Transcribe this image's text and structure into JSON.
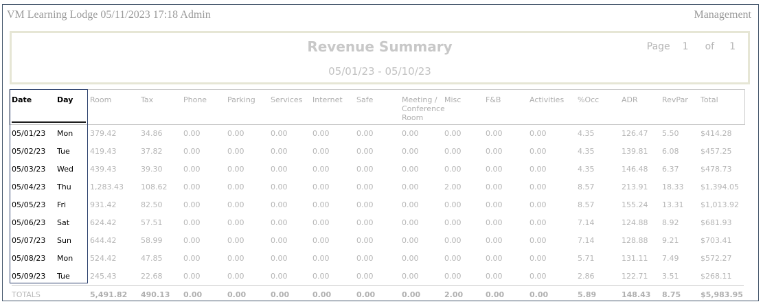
{
  "header": {
    "left": "VM Learning Lodge 05/11/2023 17:18  Admin",
    "right": "Management"
  },
  "report": {
    "title": "Revenue Summary",
    "date_range": "05/01/23 - 05/10/23",
    "page_label": "Page",
    "page_number": "1",
    "page_of": "of",
    "page_total": "1"
  },
  "table": {
    "columns": [
      "Date",
      "Day",
      "Room",
      "Tax",
      "Phone",
      "Parking",
      "Services",
      "Internet",
      "Safe",
      "Meeting / Conference Room",
      "Misc",
      "F&B",
      "Activities",
      "%Occ",
      "ADR",
      "RevPar",
      "Total"
    ],
    "rows": [
      [
        "05/01/23",
        "Mon",
        "379.42",
        "34.86",
        "0.00",
        "0.00",
        "0.00",
        "0.00",
        "0.00",
        "0.00",
        "0.00",
        "0.00",
        "0.00",
        "4.35",
        "126.47",
        "5.50",
        "$414.28"
      ],
      [
        "05/02/23",
        "Tue",
        "419.43",
        "37.82",
        "0.00",
        "0.00",
        "0.00",
        "0.00",
        "0.00",
        "0.00",
        "0.00",
        "0.00",
        "0.00",
        "4.35",
        "139.81",
        "6.08",
        "$457.25"
      ],
      [
        "05/03/23",
        "Wed",
        "439.43",
        "39.30",
        "0.00",
        "0.00",
        "0.00",
        "0.00",
        "0.00",
        "0.00",
        "0.00",
        "0.00",
        "0.00",
        "4.35",
        "146.48",
        "6.37",
        "$478.73"
      ],
      [
        "05/04/23",
        "Thu",
        "1,283.43",
        "108.62",
        "0.00",
        "0.00",
        "0.00",
        "0.00",
        "0.00",
        "0.00",
        "2.00",
        "0.00",
        "0.00",
        "8.57",
        "213.91",
        "18.33",
        "$1,394.05"
      ],
      [
        "05/05/23",
        "Fri",
        "931.42",
        "82.50",
        "0.00",
        "0.00",
        "0.00",
        "0.00",
        "0.00",
        "0.00",
        "0.00",
        "0.00",
        "0.00",
        "8.57",
        "155.24",
        "13.31",
        "$1,013.92"
      ],
      [
        "05/06/23",
        "Sat",
        "624.42",
        "57.51",
        "0.00",
        "0.00",
        "0.00",
        "0.00",
        "0.00",
        "0.00",
        "0.00",
        "0.00",
        "0.00",
        "7.14",
        "124.88",
        "8.92",
        "$681.93"
      ],
      [
        "05/07/23",
        "Sun",
        "644.42",
        "58.99",
        "0.00",
        "0.00",
        "0.00",
        "0.00",
        "0.00",
        "0.00",
        "0.00",
        "0.00",
        "0.00",
        "7.14",
        "128.88",
        "9.21",
        "$703.41"
      ],
      [
        "05/08/23",
        "Mon",
        "524.42",
        "47.85",
        "0.00",
        "0.00",
        "0.00",
        "0.00",
        "0.00",
        "0.00",
        "0.00",
        "0.00",
        "0.00",
        "5.71",
        "131.11",
        "7.49",
        "$572.27"
      ],
      [
        "05/09/23",
        "Tue",
        "245.43",
        "22.68",
        "0.00",
        "0.00",
        "0.00",
        "0.00",
        "0.00",
        "0.00",
        "0.00",
        "0.00",
        "0.00",
        "2.86",
        "122.71",
        "3.51",
        "$268.11"
      ]
    ],
    "totals": [
      "TOTALS",
      "",
      "5,491.82",
      "490.13",
      "0.00",
      "0.00",
      "0.00",
      "0.00",
      "0.00",
      "0.00",
      "2.00",
      "0.00",
      "0.00",
      "5.89",
      "148.43",
      "8.75",
      "$5,983.95"
    ]
  }
}
